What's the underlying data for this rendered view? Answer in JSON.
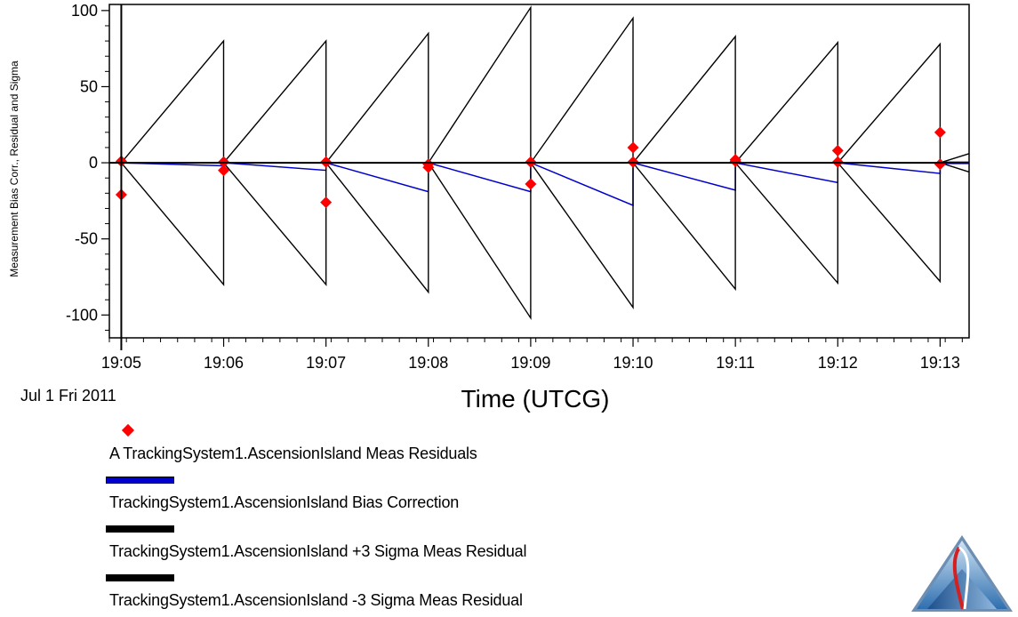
{
  "chart_data": {
    "type": "line",
    "xlabel": "Time (UTCG)",
    "ylabel": "Measurement Bias Corr., Residual and Sigma",
    "x_date_label": "Jul 1 Fri 2011",
    "x_tick_labels": [
      "19:05",
      "19:06",
      "19:07",
      "19:08",
      "19:09",
      "19:10",
      "19:11",
      "19:12",
      "19:13"
    ],
    "x_range": [
      "19:04:53",
      "19:13:17"
    ],
    "ylim": [
      -115,
      104
    ],
    "y_ticks": [
      -100,
      -50,
      0,
      50,
      100
    ],
    "y_tick_labels": [
      "-100",
      "-50",
      "0",
      "50",
      "100"
    ],
    "grid": false,
    "colors": {
      "residuals": "#ff0000",
      "bias": "#0000cc",
      "sigma": "#000000"
    },
    "series": [
      {
        "name": "A TrackingSystem1.AscensionIsland Meas Residuals",
        "style": "marker",
        "points": [
          {
            "x": "19:05:00",
            "y": 1
          },
          {
            "x": "19:05:00",
            "y": -21
          },
          {
            "x": "19:06:00",
            "y": 0.5
          },
          {
            "x": "19:06:00",
            "y": -5
          },
          {
            "x": "19:07:00",
            "y": 0.5
          },
          {
            "x": "19:07:00",
            "y": -26
          },
          {
            "x": "19:08:00",
            "y": -1
          },
          {
            "x": "19:08:00",
            "y": -3
          },
          {
            "x": "19:09:00",
            "y": 0.5
          },
          {
            "x": "19:09:00",
            "y": -14
          },
          {
            "x": "19:10:00",
            "y": 10
          },
          {
            "x": "19:10:00",
            "y": 0.5
          },
          {
            "x": "19:11:00",
            "y": 2
          },
          {
            "x": "19:11:00",
            "y": 1
          },
          {
            "x": "19:12:00",
            "y": 8
          },
          {
            "x": "19:12:00",
            "y": 0.5
          },
          {
            "x": "19:13:00",
            "y": 20
          },
          {
            "x": "19:13:00",
            "y": -1
          }
        ]
      },
      {
        "name": "TrackingSystem1.AscensionIsland Bias Correction",
        "style": "line",
        "points": [
          {
            "x": "19:05:00",
            "y": 0
          },
          {
            "x": "19:06:00",
            "y": -2
          },
          {
            "x": "19:06:00",
            "y": 0
          },
          {
            "x": "19:07:00",
            "y": -5
          },
          {
            "x": "19:07:00",
            "y": 0
          },
          {
            "x": "19:08:00",
            "y": -19
          },
          {
            "x": "19:08:00",
            "y": 0
          },
          {
            "x": "19:09:00",
            "y": -19
          },
          {
            "x": "19:09:00",
            "y": 0
          },
          {
            "x": "19:10:00",
            "y": -28
          },
          {
            "x": "19:10:00",
            "y": 0
          },
          {
            "x": "19:11:00",
            "y": -18
          },
          {
            "x": "19:11:00",
            "y": 0
          },
          {
            "x": "19:12:00",
            "y": -13
          },
          {
            "x": "19:12:00",
            "y": 0
          },
          {
            "x": "19:13:00",
            "y": -7
          },
          {
            "x": "19:13:00",
            "y": 0
          },
          {
            "x": "19:13:17",
            "y": 0
          }
        ]
      },
      {
        "name": "TrackingSystem1.AscensionIsland +3 Sigma Meas Residual",
        "style": "line",
        "points": [
          {
            "x": "19:05:00",
            "y": 0
          },
          {
            "x": "19:06:00",
            "y": 80
          },
          {
            "x": "19:06:00",
            "y": 0
          },
          {
            "x": "19:07:00",
            "y": 80
          },
          {
            "x": "19:07:00",
            "y": 0
          },
          {
            "x": "19:08:00",
            "y": 85
          },
          {
            "x": "19:08:00",
            "y": 0
          },
          {
            "x": "19:09:00",
            "y": 102
          },
          {
            "x": "19:09:00",
            "y": 0
          },
          {
            "x": "19:10:00",
            "y": 95
          },
          {
            "x": "19:10:00",
            "y": 0
          },
          {
            "x": "19:11:00",
            "y": 83
          },
          {
            "x": "19:11:00",
            "y": 0
          },
          {
            "x": "19:12:00",
            "y": 79
          },
          {
            "x": "19:12:00",
            "y": 0
          },
          {
            "x": "19:13:00",
            "y": 78
          },
          {
            "x": "19:13:00",
            "y": 0
          },
          {
            "x": "19:13:17",
            "y": 6
          }
        ]
      },
      {
        "name": "TrackingSystem1.AscensionIsland -3 Sigma Meas Residual",
        "style": "line",
        "points": [
          {
            "x": "19:05:00",
            "y": 0
          },
          {
            "x": "19:06:00",
            "y": -80
          },
          {
            "x": "19:06:00",
            "y": 0
          },
          {
            "x": "19:07:00",
            "y": -80
          },
          {
            "x": "19:07:00",
            "y": 0
          },
          {
            "x": "19:08:00",
            "y": -85
          },
          {
            "x": "19:08:00",
            "y": 0
          },
          {
            "x": "19:09:00",
            "y": -102
          },
          {
            "x": "19:09:00",
            "y": 0
          },
          {
            "x": "19:10:00",
            "y": -95
          },
          {
            "x": "19:10:00",
            "y": 0
          },
          {
            "x": "19:11:00",
            "y": -83
          },
          {
            "x": "19:11:00",
            "y": 0
          },
          {
            "x": "19:12:00",
            "y": -79
          },
          {
            "x": "19:12:00",
            "y": 0
          },
          {
            "x": "19:13:00",
            "y": -78
          },
          {
            "x": "19:13:00",
            "y": 0
          },
          {
            "x": "19:13:17",
            "y": -6
          }
        ]
      }
    ],
    "reference_lines": {
      "y_zero": 0,
      "vertical_at": "19:05:00"
    },
    "legend_placement": "bottom-left"
  },
  "logo": {
    "name": "agi-logo-icon"
  }
}
